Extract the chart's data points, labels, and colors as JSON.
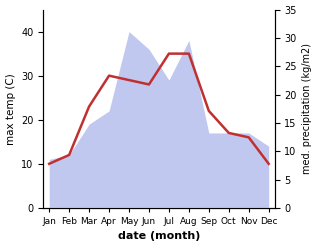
{
  "months": [
    "Jan",
    "Feb",
    "Mar",
    "Apr",
    "May",
    "Jun",
    "Jul",
    "Aug",
    "Sep",
    "Oct",
    "Nov",
    "Dec"
  ],
  "temperature": [
    10,
    12,
    23,
    30,
    29,
    28,
    35,
    35,
    22,
    17,
    16,
    10
  ],
  "precipitation": [
    11,
    12,
    19,
    22,
    40,
    36,
    29,
    38,
    17,
    17,
    17,
    14
  ],
  "temp_color": "#c03030",
  "precip_color": "#c0c8f0",
  "title": "",
  "xlabel": "date (month)",
  "ylabel_left": "max temp (C)",
  "ylabel_right": "med. precipitation (kg/m2)",
  "ylim_left": [
    0,
    45
  ],
  "ylim_right": [
    0,
    35
  ],
  "yticks_left": [
    0,
    10,
    20,
    30,
    40
  ],
  "yticks_right": [
    0,
    5,
    10,
    15,
    20,
    25,
    30,
    35
  ],
  "line_width": 1.8
}
